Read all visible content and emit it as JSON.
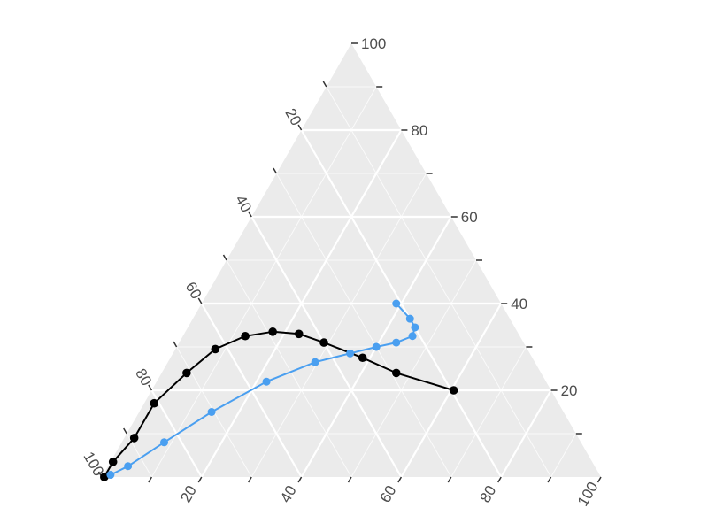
{
  "chart_data": {
    "type": "ternary-line",
    "title": "",
    "axes": {
      "right": {
        "label": "",
        "ticks": [
          20,
          40,
          60,
          80,
          100
        ],
        "tick_labels": [
          "20",
          "40",
          "60",
          "80",
          "100"
        ]
      },
      "left": {
        "label": "",
        "ticks": [
          20,
          40,
          60,
          80,
          100
        ],
        "tick_labels": [
          "20",
          "40",
          "60",
          "80",
          "100"
        ]
      },
      "bottom": {
        "label": "",
        "ticks": [
          20,
          40,
          60,
          80,
          100
        ],
        "tick_labels": [
          "20",
          "40",
          "60",
          "80",
          "100"
        ]
      }
    },
    "grid": true,
    "panel_color": "#ebebeb",
    "series": [
      {
        "color": "#000000",
        "points": [
          {
            "bottom": 0.5,
            "right": 0.0,
            "left": 99.5
          },
          {
            "bottom": 0.5,
            "right": 3.5,
            "left": 96.0
          },
          {
            "bottom": 2.0,
            "right": 9.0,
            "left": 89.0
          },
          {
            "bottom": 2.0,
            "right": 17.0,
            "left": 81.0
          },
          {
            "bottom": 5.0,
            "right": 24.0,
            "left": 71.0
          },
          {
            "bottom": 8.0,
            "right": 29.5,
            "left": 62.5
          },
          {
            "bottom": 12.5,
            "right": 32.5,
            "left": 55.0
          },
          {
            "bottom": 17.5,
            "right": 33.5,
            "left": 49.0
          },
          {
            "bottom": 23.0,
            "right": 33.0,
            "left": 44.0
          },
          {
            "bottom": 29.0,
            "right": 31.0,
            "left": 40.0
          },
          {
            "bottom": 38.5,
            "right": 27.5,
            "left": 34.0
          },
          {
            "bottom": 47.0,
            "right": 24.0,
            "left": 29.0
          },
          {
            "bottom": 60.5,
            "right": 20.0,
            "left": 19.5
          }
        ]
      },
      {
        "color": "#4a9ff0",
        "points": [
          {
            "bottom": 1.5,
            "right": 0.5,
            "left": 98.0
          },
          {
            "bottom": 4.0,
            "right": 2.5,
            "left": 93.5
          },
          {
            "bottom": 8.5,
            "right": 8.0,
            "left": 83.5
          },
          {
            "bottom": 14.5,
            "right": 15.0,
            "left": 70.5
          },
          {
            "bottom": 22.0,
            "right": 22.0,
            "left": 56.0
          },
          {
            "bottom": 29.5,
            "right": 26.5,
            "left": 44.0
          },
          {
            "bottom": 35.5,
            "right": 28.5,
            "left": 36.0
          },
          {
            "bottom": 40.0,
            "right": 30.0,
            "left": 30.0
          },
          {
            "bottom": 43.5,
            "right": 31.0,
            "left": 25.5
          },
          {
            "bottom": 46.0,
            "right": 32.5,
            "left": 21.5
          },
          {
            "bottom": 45.5,
            "right": 34.5,
            "left": 20.0
          },
          {
            "bottom": 43.5,
            "right": 36.5,
            "left": 20.0
          },
          {
            "bottom": 39.0,
            "right": 40.0,
            "left": 21.0
          }
        ]
      }
    ]
  }
}
